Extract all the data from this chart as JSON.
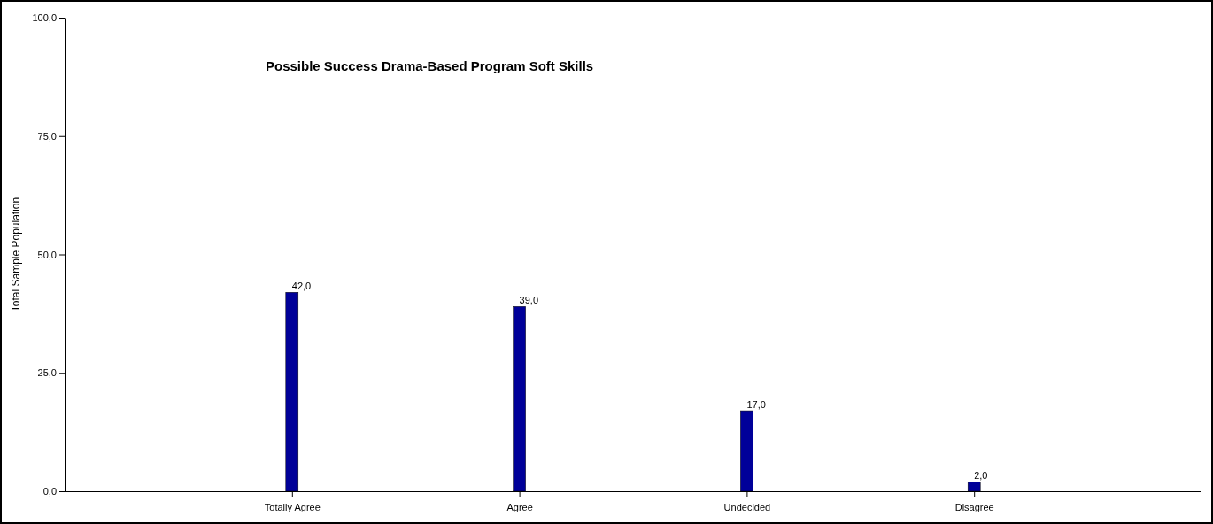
{
  "chart_data": {
    "type": "bar",
    "title": "Possible Success Drama-Based Program Soft Skills",
    "ylabel": "Total Sample Population",
    "categories": [
      "Totally Agree",
      "Agree",
      "Undecided",
      "Disagree"
    ],
    "values": [
      42,
      39,
      17,
      2
    ],
    "value_labels": [
      "42,0",
      "39,0",
      "17,0",
      "2,0"
    ],
    "color": "#000099",
    "ylim": [
      0,
      100
    ],
    "yticks": [
      {
        "value": 0,
        "label": "0,0"
      },
      {
        "value": 25,
        "label": "25,0"
      },
      {
        "value": 50,
        "label": "50,0"
      },
      {
        "value": 75,
        "label": "75,0"
      },
      {
        "value": 100,
        "label": "100,0"
      }
    ],
    "grid": false
  }
}
